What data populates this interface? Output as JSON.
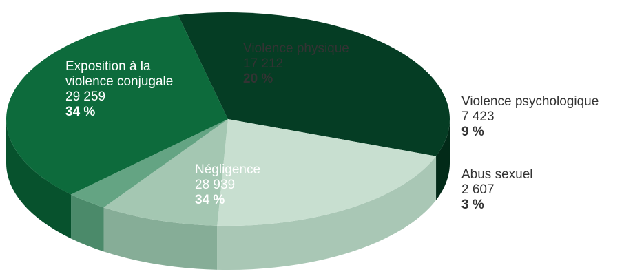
{
  "chart_data": {
    "type": "pie",
    "title": "",
    "slices": [
      {
        "label_lines": [
          "Exposition à la",
          "violence conjugale"
        ],
        "value": 29259,
        "value_text": "29 259",
        "percent_text": "34 %",
        "color": "#053d24",
        "side_color": "#022a18"
      },
      {
        "label_lines": [
          "Violence physique"
        ],
        "value": 17212,
        "value_text": "17 212",
        "percent_text": "20 %",
        "color": "#c8dfd0",
        "side_color": "#a9c7b5"
      },
      {
        "label_lines": [
          "Violence psychologique"
        ],
        "value": 7423,
        "value_text": "7 423",
        "percent_text": "9 %",
        "color": "#a4c7b2",
        "side_color": "#86ad97"
      },
      {
        "label_lines": [
          "Abus sexuel"
        ],
        "value": 2607,
        "value_text": "2 607",
        "percent_text": "3 %",
        "color": "#64a483",
        "side_color": "#4b8a6a"
      },
      {
        "label_lines": [
          "Négligence"
        ],
        "value": 28939,
        "value_text": "28 939",
        "percent_text": "34 %",
        "color": "#0d6b3c",
        "side_color": "#07522d"
      }
    ]
  }
}
